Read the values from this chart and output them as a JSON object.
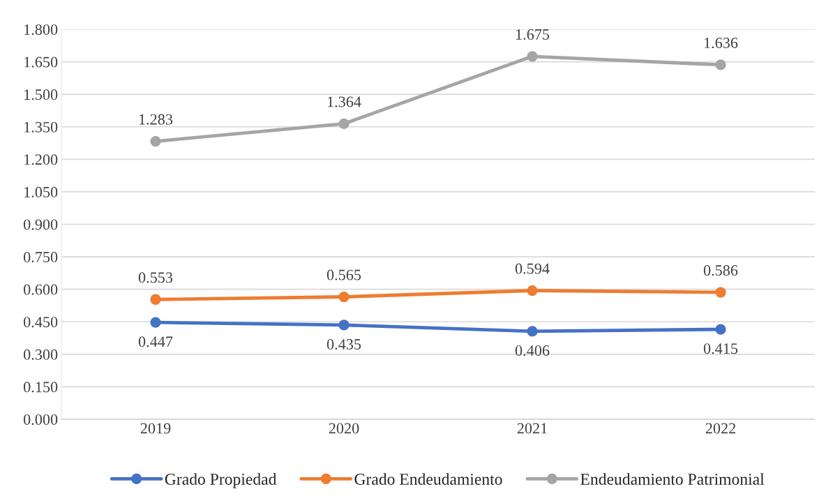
{
  "chart_data": {
    "type": "line",
    "categories": [
      "2019",
      "2020",
      "2021",
      "2022"
    ],
    "series": [
      {
        "name": "Grado Propiedad",
        "color": "#4472c4",
        "values": [
          0.447,
          0.435,
          0.406,
          0.415
        ]
      },
      {
        "name": "Grado Endeudamiento",
        "color": "#ed7d31",
        "values": [
          0.553,
          0.565,
          0.594,
          0.586
        ]
      },
      {
        "name": "Endeudamiento Patrimonial",
        "color": "#a5a5a5",
        "values": [
          1.283,
          1.364,
          1.675,
          1.636
        ]
      }
    ],
    "ylim": [
      0,
      1.8
    ],
    "yticks": [
      {
        "value": 0,
        "label": "0.000"
      },
      {
        "value": 0.15,
        "label": "0.150"
      },
      {
        "value": 0.3,
        "label": "0.300"
      },
      {
        "value": 0.45,
        "label": "0.450"
      },
      {
        "value": 0.6,
        "label": "0.600"
      },
      {
        "value": 0.75,
        "label": "0.750"
      },
      {
        "value": 0.9,
        "label": "0.900"
      },
      {
        "value": 1.05,
        "label": "1.050"
      },
      {
        "value": 1.2,
        "label": "1.200"
      },
      {
        "value": 1.35,
        "label": "1.350"
      },
      {
        "value": 1.5,
        "label": "1.500"
      },
      {
        "value": 1.65,
        "label": "1.650"
      },
      {
        "value": 1.8,
        "label": "1.800"
      }
    ],
    "grid": "y",
    "legend": "bottom",
    "marker": "circle",
    "line_style": "solid",
    "data_labels": true
  }
}
